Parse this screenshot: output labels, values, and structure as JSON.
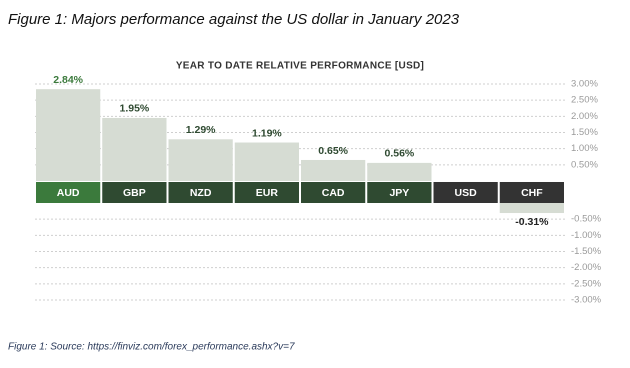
{
  "caption": "Figure 1: Majors performance against the US dollar in January 2023",
  "source": "Figure 1: Source: https://finviz.com/forex_performance.ashx?v=7",
  "chart_data": {
    "type": "bar",
    "title": "YEAR TO DATE RELATIVE PERFORMANCE [USD]",
    "categories": [
      "AUD",
      "GBP",
      "NZD",
      "EUR",
      "CAD",
      "JPY",
      "USD",
      "CHF"
    ],
    "values": [
      2.84,
      1.95,
      1.29,
      1.19,
      0.65,
      0.56,
      0,
      -0.31
    ],
    "value_labels": [
      "2.84%",
      "1.95%",
      "1.29%",
      "1.19%",
      "0.65%",
      "0.56%",
      null,
      "-0.31%"
    ],
    "color": "#d6dcd3",
    "category_colors": [
      "#3b7a3c",
      "#2f4a31",
      "#2f4a31",
      "#2f4a31",
      "#2f4a31",
      "#2f4a31",
      "#333333",
      "#333333"
    ],
    "ylim": [
      -3,
      3
    ],
    "yticks": [
      {
        "value": 3,
        "label": "3.00%"
      },
      {
        "value": 2.5,
        "label": "2.50%"
      },
      {
        "value": 2,
        "label": "2.00%"
      },
      {
        "value": 1.5,
        "label": "1.50%"
      },
      {
        "value": 1,
        "label": "1.00%"
      },
      {
        "value": 0.5,
        "label": "0.50%"
      },
      {
        "value": -0.5,
        "label": "-0.50%"
      },
      {
        "value": -1,
        "label": "-1.00%"
      },
      {
        "value": -1.5,
        "label": "-1.50%"
      },
      {
        "value": -2,
        "label": "-2.00%"
      },
      {
        "value": -2.5,
        "label": "-2.50%"
      },
      {
        "value": -3,
        "label": "-3.00%"
      }
    ],
    "grid": true
  }
}
